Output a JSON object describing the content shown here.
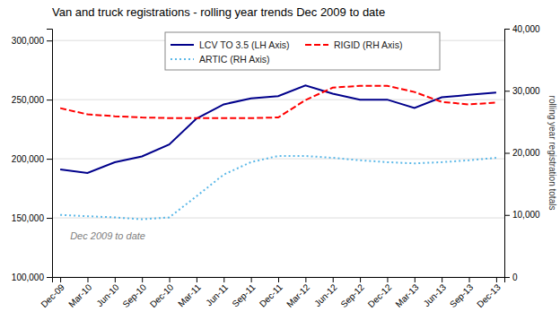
{
  "chart_data": {
    "type": "line",
    "title": "Van and truck registrations - rolling year trends Dec 2009 to date",
    "annotation": "Dec 2009 to date",
    "y2label": "rolling year registration totals",
    "categories": [
      "Dec-09",
      "Mar-10",
      "Jun-10",
      "Sep-10",
      "Dec-10",
      "Mar-11",
      "Jun-11",
      "Sep-11",
      "Dec-11",
      "Mar-12",
      "Jun-12",
      "Sep-12",
      "Dec-12",
      "Mar-13",
      "Jun-13",
      "Sep-13",
      "Dec-13"
    ],
    "series": [
      {
        "name": "LCV TO 3.5 (LH Axis)",
        "color": "#00008B",
        "line_style": "solid",
        "values": [
          191000,
          188000,
          197000,
          202000,
          212000,
          234000,
          246000,
          251000,
          253000,
          262000,
          255000,
          250000,
          250000,
          243000,
          252000,
          254000,
          256000
        ]
      },
      {
        "name": "RIGID (RH Axis)",
        "color": "#FF0000",
        "line_style": "dashed",
        "axis": "y2",
        "values": [
          27200,
          26200,
          25900,
          25700,
          25600,
          25600,
          25600,
          25600,
          25700,
          28500,
          30500,
          30800,
          30800,
          29800,
          28200,
          27800,
          28100
        ]
      },
      {
        "name": "ARTIC (RH Axis)",
        "color": "#5BB8E8",
        "line_style": "dotted",
        "axis": "y2",
        "values": [
          10000,
          9800,
          9600,
          9300,
          9600,
          13000,
          16500,
          18500,
          19500,
          19500,
          19200,
          18800,
          18500,
          18300,
          18500,
          18800,
          19200
        ]
      }
    ],
    "ylim": [
      100000,
      310000
    ],
    "yticks": [
      {
        "value": 100000,
        "label": "100,000"
      },
      {
        "value": 150000,
        "label": "150,000"
      },
      {
        "value": 200000,
        "label": "200,000"
      },
      {
        "value": 250000,
        "label": "250,000"
      },
      {
        "value": 300000,
        "label": "300,000"
      }
    ],
    "y2lim": [
      0,
      40000
    ],
    "y2ticks": [
      0,
      {
        "value": 10000,
        "label": "10,000"
      },
      {
        "value": 20000,
        "label": "20,000"
      },
      {
        "value": 30000,
        "label": "30,000"
      },
      {
        "value": 40000,
        "label": "40,000"
      }
    ],
    "grid": true,
    "legend": "top"
  }
}
